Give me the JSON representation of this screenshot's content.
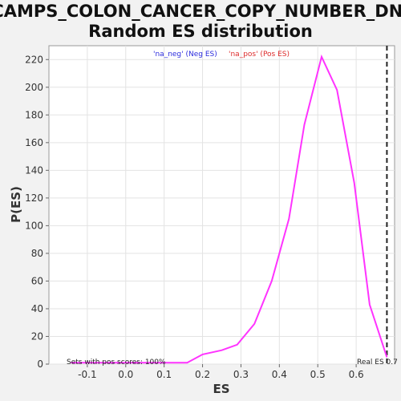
{
  "chart_data": {
    "type": "line",
    "title_line1": "CAMPS_COLON_CANCER_COPY_NUMBER_DN:",
    "title_line2": "Random ES distribution",
    "xlabel": "ES",
    "ylabel": "P(ES)",
    "xlim": [
      -0.2,
      0.7
    ],
    "ylim": [
      0,
      230
    ],
    "x_ticks": [
      -0.1,
      0.0,
      0.1,
      0.2,
      0.3,
      0.4,
      0.5,
      0.6
    ],
    "x_tick_labels": [
      "-0.1",
      "0.0",
      "0.1",
      "0.2",
      "0.3",
      "0.4",
      "0.5",
      "0.6"
    ],
    "y_ticks": [
      0,
      20,
      40,
      60,
      80,
      100,
      120,
      140,
      160,
      180,
      200,
      220
    ],
    "y_tick_labels": [
      "0",
      "20",
      "40",
      "60",
      "80",
      "100",
      "120",
      "140",
      "160",
      "180",
      "200",
      "220"
    ],
    "grid": true,
    "legend": [
      {
        "label": "'na_neg' (Neg ES)",
        "color": "#2b2bdd"
      },
      {
        "label": "'na_pos' (Pos ES)",
        "color": "#dd2b2b"
      }
    ],
    "series": [
      {
        "color": "#ff33ff",
        "x": [
          -0.143,
          -0.1,
          -0.05,
          0.0,
          0.05,
          0.1,
          0.16,
          0.2,
          0.25,
          0.29,
          0.335,
          0.38,
          0.425,
          0.465,
          0.51,
          0.55,
          0.595,
          0.635,
          0.68
        ],
        "y": [
          1,
          1,
          1,
          1,
          1,
          1,
          1,
          7,
          10,
          14,
          29,
          60,
          105,
          173,
          222,
          198,
          131,
          43,
          5
        ]
      }
    ],
    "real_es": 0.68,
    "real_es_label": "Real ES 0.7",
    "annotation": "Sets with pos scores: 100%"
  }
}
